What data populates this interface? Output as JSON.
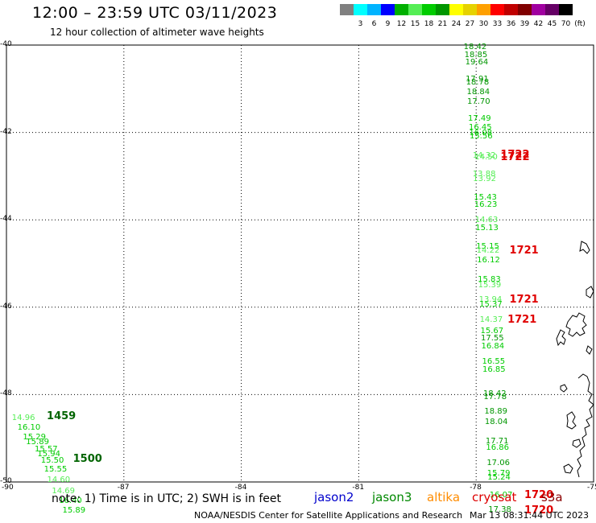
{
  "header": {
    "title": "12:00 – 23:59 UTC 03/11/2023",
    "subtitle": "12 hour collection of altimeter wave heights"
  },
  "colorbar": {
    "unit": "(ft)",
    "bins": [
      {
        "color": "#808080",
        "label": ""
      },
      {
        "color": "#00ffff",
        "label": "3"
      },
      {
        "color": "#00b4ff",
        "label": "6"
      },
      {
        "color": "#0000ff",
        "label": "9"
      },
      {
        "color": "#00b000",
        "label": "12"
      },
      {
        "color": "#55ee55",
        "label": "15"
      },
      {
        "color": "#00cc00",
        "label": "18"
      },
      {
        "color": "#009600",
        "label": "21"
      },
      {
        "color": "#ffff00",
        "label": "24"
      },
      {
        "color": "#e6d200",
        "label": "27"
      },
      {
        "color": "#ffa000",
        "label": "30"
      },
      {
        "color": "#ff0000",
        "label": "33"
      },
      {
        "color": "#c00000",
        "label": "36"
      },
      {
        "color": "#800000",
        "label": "39"
      },
      {
        "color": "#a000a0",
        "label": "42"
      },
      {
        "color": "#660066",
        "label": "45"
      },
      {
        "color": "#000000",
        "label": "70"
      }
    ]
  },
  "axes": {
    "lon_labels": [
      "-90",
      "-87",
      "-84",
      "-81",
      "-78",
      "-75"
    ],
    "lat_labels": [
      "-40",
      "-42",
      "-44",
      "-46",
      "-48",
      "-50"
    ],
    "lon_range": [
      -90,
      -75
    ],
    "lat_range": [
      -50,
      -40
    ]
  },
  "observations": [
    {
      "lon": -78.32,
      "lat": -40.05,
      "value": "18.42",
      "color": "#009600"
    },
    {
      "lon": -78.3,
      "lat": -40.24,
      "value": "18.85",
      "color": "#009600"
    },
    {
      "lon": -78.28,
      "lat": -40.41,
      "value": "19.64",
      "color": "#009600"
    },
    {
      "lon": -78.27,
      "lat": -40.8,
      "value": "17.91",
      "color": "#009600"
    },
    {
      "lon": -78.26,
      "lat": -40.87,
      "value": "18.78",
      "color": "#009600"
    },
    {
      "lon": -78.24,
      "lat": -41.09,
      "value": "18.84",
      "color": "#009600"
    },
    {
      "lon": -78.23,
      "lat": -41.31,
      "value": "17.70",
      "color": "#009600"
    },
    {
      "lon": -78.21,
      "lat": -41.69,
      "value": "17.49",
      "color": "#00cc00"
    },
    {
      "lon": -78.19,
      "lat": -41.9,
      "value": "16.45",
      "color": "#00cc00"
    },
    {
      "lon": -78.18,
      "lat": -42.02,
      "value": "16.08",
      "color": "#00cc00"
    },
    {
      "lon": -78.17,
      "lat": -42.1,
      "value": "15.56",
      "color": "#00cc00"
    },
    {
      "lon": -78.09,
      "lat": -42.54,
      "value": "14.32",
      "color": "#55ee55"
    },
    {
      "lon": -78.04,
      "lat": -42.58,
      "value": "14.50",
      "color": "#55ee55"
    },
    {
      "lon": -78.09,
      "lat": -42.97,
      "value": "13.88",
      "color": "#55ee55"
    },
    {
      "lon": -78.08,
      "lat": -43.07,
      "value": "13.92",
      "color": "#55ee55"
    },
    {
      "lon": -78.06,
      "lat": -43.5,
      "value": "15.43",
      "color": "#00cc00"
    },
    {
      "lon": -78.05,
      "lat": -43.67,
      "value": "16.23",
      "color": "#00cc00"
    },
    {
      "lon": -78.03,
      "lat": -44.02,
      "value": "14.63",
      "color": "#55ee55"
    },
    {
      "lon": -78.02,
      "lat": -44.19,
      "value": "15.13",
      "color": "#00cc00"
    },
    {
      "lon": -78.0,
      "lat": -44.63,
      "value": "15.15",
      "color": "#00cc00"
    },
    {
      "lon": -77.99,
      "lat": -44.71,
      "value": "14.22",
      "color": "#55ee55"
    },
    {
      "lon": -77.98,
      "lat": -44.93,
      "value": "16.12",
      "color": "#00cc00"
    },
    {
      "lon": -77.96,
      "lat": -45.37,
      "value": "15.83",
      "color": "#00cc00"
    },
    {
      "lon": -77.95,
      "lat": -45.5,
      "value": "15.39",
      "color": "#55ee55"
    },
    {
      "lon": -77.93,
      "lat": -45.84,
      "value": "13.94",
      "color": "#55ee55"
    },
    {
      "lon": -77.92,
      "lat": -45.95,
      "value": "15.37",
      "color": "#00cc00"
    },
    {
      "lon": -77.91,
      "lat": -46.3,
      "value": "14.37",
      "color": "#55ee55"
    },
    {
      "lon": -77.89,
      "lat": -46.55,
      "value": "15.67",
      "color": "#00cc00"
    },
    {
      "lon": -77.88,
      "lat": -46.72,
      "value": "17.55",
      "color": "#009600"
    },
    {
      "lon": -77.87,
      "lat": -46.9,
      "value": "16.84",
      "color": "#00cc00"
    },
    {
      "lon": -77.85,
      "lat": -47.25,
      "value": "16.55",
      "color": "#00cc00"
    },
    {
      "lon": -77.84,
      "lat": -47.44,
      "value": "16.85",
      "color": "#00cc00"
    },
    {
      "lon": -77.82,
      "lat": -47.99,
      "value": "18.42",
      "color": "#009600"
    },
    {
      "lon": -77.81,
      "lat": -48.07,
      "value": "17.78",
      "color": "#009600"
    },
    {
      "lon": -77.79,
      "lat": -48.4,
      "value": "18.89",
      "color": "#009600"
    },
    {
      "lon": -77.78,
      "lat": -48.64,
      "value": "18.04",
      "color": "#009600"
    },
    {
      "lon": -77.76,
      "lat": -49.07,
      "value": "17.71",
      "color": "#009600"
    },
    {
      "lon": -77.75,
      "lat": -49.22,
      "value": "16.86",
      "color": "#00cc00"
    },
    {
      "lon": -77.73,
      "lat": -49.58,
      "value": "17.06",
      "color": "#009600"
    },
    {
      "lon": -77.72,
      "lat": -49.82,
      "value": "15.79",
      "color": "#00cc00"
    },
    {
      "lon": -77.71,
      "lat": -49.91,
      "value": "15.24",
      "color": "#00cc00"
    },
    {
      "lon": -77.66,
      "lat": -50.31,
      "value": "16.07",
      "color": "#00cc00"
    },
    {
      "lon": -77.69,
      "lat": -50.64,
      "value": "17.38",
      "color": "#009600"
    },
    {
      "lon": -89.86,
      "lat": -48.54,
      "value": "14.96",
      "color": "#55ee55"
    },
    {
      "lon": -89.72,
      "lat": -48.77,
      "value": "16.10",
      "color": "#00cc00"
    },
    {
      "lon": -89.58,
      "lat": -48.98,
      "value": "15.29",
      "color": "#00cc00"
    },
    {
      "lon": -89.5,
      "lat": -49.09,
      "value": "15.89",
      "color": "#00cc00"
    },
    {
      "lon": -89.28,
      "lat": -49.27,
      "value": "15.57",
      "color": "#00cc00"
    },
    {
      "lon": -89.21,
      "lat": -49.37,
      "value": "15.94",
      "color": "#00cc00"
    },
    {
      "lon": -89.12,
      "lat": -49.52,
      "value": "15.50",
      "color": "#00cc00"
    },
    {
      "lon": -89.04,
      "lat": -49.72,
      "value": "15.55",
      "color": "#00cc00"
    },
    {
      "lon": -88.96,
      "lat": -49.97,
      "value": "14.60",
      "color": "#55ee55"
    },
    {
      "lon": -88.84,
      "lat": -50.22,
      "value": "14.69",
      "color": "#55ee55"
    },
    {
      "lon": -88.66,
      "lat": -50.45,
      "value": "16.40",
      "color": "#00cc00"
    },
    {
      "lon": -88.57,
      "lat": -50.67,
      "value": "15.89",
      "color": "#00cc00"
    }
  ],
  "pass_times": [
    {
      "lon": -77.38,
      "lat": -42.52,
      "text": "1722",
      "color": "#e00000"
    },
    {
      "lon": -77.38,
      "lat": -42.57,
      "text": "1722",
      "color": "#e00000"
    },
    {
      "lon": -77.15,
      "lat": -44.72,
      "text": "1721",
      "color": "#e00000"
    },
    {
      "lon": -77.15,
      "lat": -45.84,
      "text": "1721",
      "color": "#e00000"
    },
    {
      "lon": -77.2,
      "lat": -46.3,
      "text": "1721",
      "color": "#e00000"
    },
    {
      "lon": -76.77,
      "lat": -50.31,
      "text": "1720",
      "color": "#e00000"
    },
    {
      "lon": -76.77,
      "lat": -50.66,
      "text": "1720",
      "color": "#e00000"
    },
    {
      "lon": -88.97,
      "lat": -48.5,
      "text": "1459",
      "color": "#006400"
    },
    {
      "lon": -88.3,
      "lat": -49.48,
      "text": "1500",
      "color": "#006400"
    }
  ],
  "footer": {
    "note": "note: 1) Time is in UTC; 2) SWH is in feet",
    "satellites": [
      {
        "name": "jason2",
        "color": "#0000cc"
      },
      {
        "name": "jason3",
        "color": "#008800"
      },
      {
        "name": "altika",
        "color": "#ff8c00"
      },
      {
        "name": "cryosat",
        "color": "#dd0000"
      },
      {
        "name": "s3a",
        "color": "#8b0000"
      }
    ],
    "credit": "NOAA/NESDIS Center for Satellite Applications and Research",
    "timestamp": "Mar 13 08:31:44 UTC 2023"
  }
}
